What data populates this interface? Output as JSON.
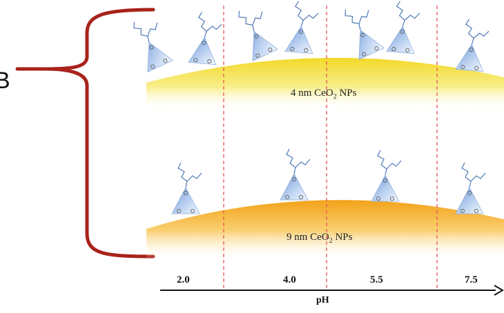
{
  "edge_letter": "B",
  "panels": [
    {
      "id": "np-4nm",
      "size_text": "4 nm Ce",
      "o_sub": "O",
      "sub": "2",
      "suffix": " NPs",
      "ligand_count": [
        2,
        2,
        2,
        1
      ]
    },
    {
      "id": "np-9nm",
      "size_text": "9 nm Ce",
      "o_sub": "O",
      "sub": "2",
      "suffix": " NPs",
      "ligand_count": [
        1,
        1,
        1,
        1
      ]
    }
  ],
  "ph_axis": {
    "title": "pH",
    "ticks": [
      "2.0",
      "4.0",
      "5.5",
      "7.5"
    ]
  },
  "colors": {
    "bracket": "#a8231b",
    "divider": "#e8535a",
    "ligand_line": "#4f78b8",
    "np_small_top": "#f4e04a",
    "np_large_top": "#f5a820"
  }
}
